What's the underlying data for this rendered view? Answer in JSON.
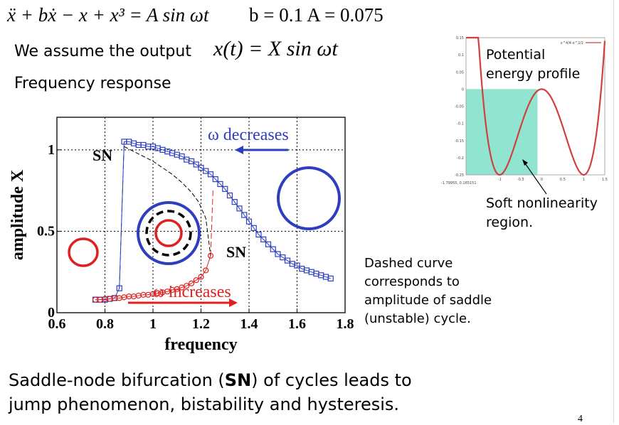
{
  "equation": "ẍ + bẋ − x + x³ = A sin ωt",
  "params": "b = 0.1   A = 0.075",
  "assume_prefix": "We assume the output",
  "assume_expr": "x(t) = X sin ωt",
  "frequency_response_label": "Frequency response",
  "dashed_note": "Dashed curve corresponds to amplitude of saddle (unstable) cycle.",
  "potential_label": "Potential energy profile",
  "soft_label": "Soft nonlinearity region.",
  "conclusion": {
    "before": "Saddle-node bifurcation (",
    "bold": "SN",
    "after": ") of cycles leads to jump phenomenon, bistability and hysteresis."
  },
  "page_number": "4",
  "colors": {
    "blue": "#2d3fbf",
    "red": "#e02020",
    "teal": "#7ee0c8",
    "curve_red": "#d04040"
  },
  "chart_data": [
    {
      "type": "line",
      "xlabel": "frequency",
      "ylabel": "amplitude X",
      "xlim": [
        0.6,
        1.8
      ],
      "ylim": [
        0,
        1.2
      ],
      "x_ticks": [
        "0.6",
        "0.8",
        "1",
        "1.2",
        "1.4",
        "1.6",
        "1.8"
      ],
      "y_ticks": [
        "0",
        "0.5",
        "1"
      ],
      "grid": true,
      "annotations": {
        "sn_top": "SN",
        "sn_bottom": "SN",
        "omega_decreases": "ω decreases",
        "omega_increases": "ω increases"
      },
      "series": [
        {
          "marker": "square",
          "color": "#2d3fbf",
          "x": [
            0.76,
            0.78,
            0.8,
            0.82,
            0.84,
            0.86,
            0.88,
            0.9,
            0.92,
            0.94,
            0.96,
            0.98,
            1.0,
            1.02,
            1.04,
            1.06,
            1.08,
            1.1,
            1.12,
            1.14,
            1.16,
            1.18,
            1.2,
            1.22,
            1.24,
            1.26,
            1.28,
            1.3,
            1.32,
            1.34,
            1.36,
            1.38,
            1.4,
            1.42,
            1.44,
            1.46,
            1.48,
            1.5,
            1.52,
            1.54,
            1.56,
            1.58,
            1.6,
            1.62,
            1.64,
            1.66,
            1.68,
            1.7,
            1.72,
            1.74
          ],
          "y": [
            0.08,
            0.08,
            0.08,
            0.085,
            0.09,
            0.15,
            1.05,
            1.05,
            1.04,
            1.03,
            1.03,
            1.02,
            1.02,
            1.01,
            1.0,
            0.99,
            0.98,
            0.97,
            0.96,
            0.94,
            0.93,
            0.91,
            0.89,
            0.87,
            0.85,
            0.82,
            0.79,
            0.76,
            0.72,
            0.68,
            0.64,
            0.6,
            0.56,
            0.52,
            0.48,
            0.45,
            0.42,
            0.39,
            0.36,
            0.34,
            0.32,
            0.3,
            0.29,
            0.27,
            0.26,
            0.25,
            0.24,
            0.23,
            0.22,
            0.21
          ]
        },
        {
          "marker": "circle",
          "color": "#e02020",
          "x": [
            0.76,
            0.78,
            0.8,
            0.82,
            0.84,
            0.86,
            0.88,
            0.9,
            0.92,
            0.94,
            0.96,
            0.98,
            1.0,
            1.02,
            1.04,
            1.06,
            1.08,
            1.1,
            1.12,
            1.14,
            1.16,
            1.18,
            1.2,
            1.22,
            1.24
          ],
          "y": [
            0.08,
            0.08,
            0.085,
            0.085,
            0.09,
            0.09,
            0.095,
            0.1,
            0.1,
            0.105,
            0.11,
            0.11,
            0.115,
            0.12,
            0.125,
            0.13,
            0.14,
            0.145,
            0.155,
            0.165,
            0.18,
            0.2,
            0.22,
            0.26,
            0.35
          ]
        },
        {
          "style": "dashed",
          "color": "#000000",
          "x": [
            0.88,
            0.92,
            0.96,
            1.0,
            1.04,
            1.08,
            1.12,
            1.16,
            1.19,
            1.22,
            1.24
          ],
          "y": [
            1.02,
            0.99,
            0.96,
            0.93,
            0.89,
            0.85,
            0.8,
            0.74,
            0.68,
            0.58,
            0.35
          ]
        }
      ]
    },
    {
      "type": "line",
      "legend": "x^4/4-x^2/2",
      "xlim": [
        -1.8,
        1.5
      ],
      "ylim": [
        -0.25,
        0.15
      ],
      "x_ticks": [
        "-1",
        "-0.5",
        "0",
        "0.5",
        "1",
        "1.5"
      ],
      "y_ticks": [
        "0.15",
        "0.1",
        "0.05",
        "0",
        "-0.05",
        "-0.1",
        "-0.15",
        "-0.2",
        "-0.25"
      ],
      "cursor_readout": "-1.79955, 0.165151",
      "shaded_region": [
        -1.8,
        -0.1
      ],
      "function": "x^4/4 - x^2/2"
    }
  ]
}
